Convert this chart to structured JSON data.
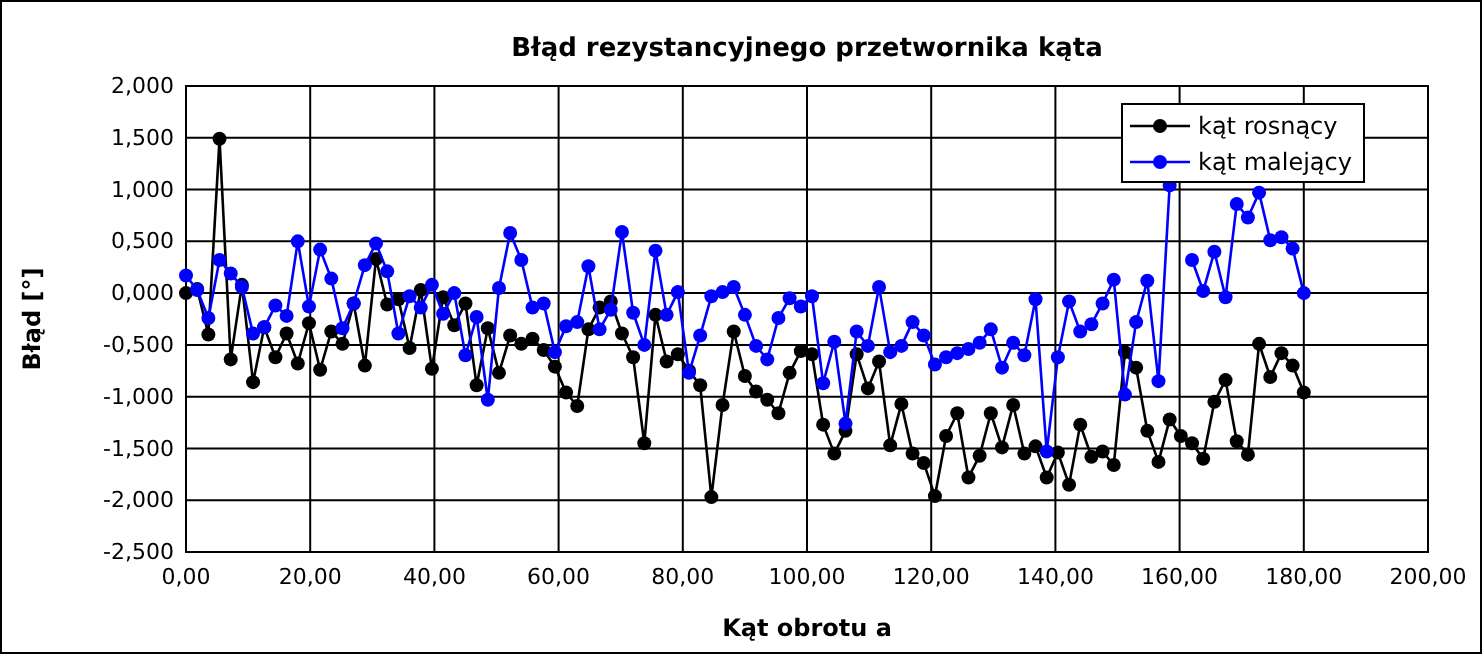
{
  "chart_data": {
    "type": "line",
    "title": "Błąd rezystancyjnego przetwornika kąta",
    "xlabel": "Kąt obrotu a",
    "ylabel": "Błąd [°]",
    "x": [
      0,
      1.8,
      3.6,
      5.4,
      7.2,
      9,
      10.8,
      12.6,
      14.4,
      16.2,
      18,
      19.8,
      21.6,
      23.4,
      25.2,
      27,
      28.8,
      30.6,
      32.4,
      34.2,
      36,
      37.8,
      39.6,
      41.4,
      43.2,
      45,
      46.8,
      48.6,
      50.4,
      52.2,
      54,
      55.8,
      57.6,
      59.4,
      61.2,
      63,
      64.8,
      66.6,
      68.4,
      70.2,
      72,
      73.8,
      75.6,
      77.4,
      79.2,
      81,
      82.8,
      84.6,
      86.4,
      88.2,
      90,
      91.8,
      93.6,
      95.4,
      97.2,
      99,
      100.8,
      102.6,
      104.4,
      106.2,
      108,
      109.8,
      111.6,
      113.4,
      115.2,
      117,
      118.8,
      120.6,
      122.4,
      124.2,
      126,
      127.8,
      129.6,
      131.4,
      133.2,
      135,
      136.8,
      138.6,
      140.4,
      142.2,
      144,
      145.8,
      147.6,
      149.4,
      151.2,
      153,
      154.8,
      156.6,
      158.4,
      160.2,
      162,
      163.8,
      165.6,
      167.4,
      169.2,
      171,
      172.8,
      174.6,
      176.4,
      178.2,
      180
    ],
    "series": [
      {
        "name": "kąt rosnący",
        "color": "#000000",
        "values": [
          0,
          0.04,
          -0.4,
          1.49,
          -0.64,
          0.08,
          -0.86,
          -0.33,
          -0.62,
          -0.39,
          -0.68,
          -0.29,
          -0.74,
          -0.37,
          -0.49,
          -0.1,
          -0.7,
          0.33,
          -0.11,
          -0.06,
          -0.53,
          0.03,
          -0.73,
          -0.04,
          -0.31,
          -0.1,
          -0.89,
          -0.34,
          -0.77,
          -0.41,
          -0.49,
          -0.44,
          -0.55,
          -0.71,
          -0.96,
          -1.09,
          -0.35,
          -0.14,
          -0.08,
          -0.39,
          -0.62,
          -1.45,
          -0.21,
          -0.66,
          -0.59,
          -0.75,
          -0.89,
          -1.97,
          -1.08,
          -0.37,
          -0.8,
          -0.95,
          -1.03,
          -1.16,
          -0.77,
          -0.56,
          -0.59,
          -1.27,
          -1.55,
          -1.33,
          -0.59,
          -0.92,
          -0.66,
          -1.47,
          -1.07,
          -1.55,
          -1.64,
          -1.96,
          -1.38,
          -1.16,
          -1.78,
          -1.57,
          -1.16,
          -1.49,
          -1.08,
          -1.55,
          -1.48,
          -1.78,
          -1.54,
          -1.85,
          -1.27,
          -1.58,
          -1.53,
          -1.66,
          -0.57,
          -0.72,
          -1.33,
          -1.63,
          -1.22,
          -1.38,
          -1.45,
          -1.6,
          -1.05,
          -0.84,
          -1.43,
          -1.56,
          -0.49,
          -0.81,
          -0.58,
          -0.7,
          -0.96
        ]
      },
      {
        "name": "kąt malejący",
        "color": "#0000ff",
        "values": [
          0.17,
          0.03,
          -0.24,
          0.32,
          0.19,
          0.06,
          -0.39,
          -0.33,
          -0.12,
          -0.22,
          0.5,
          -0.13,
          0.42,
          0.14,
          -0.34,
          -0.1,
          0.27,
          0.48,
          0.21,
          -0.39,
          -0.03,
          -0.14,
          0.08,
          -0.2,
          0.0,
          -0.6,
          -0.23,
          -1.03,
          0.05,
          0.58,
          0.32,
          -0.14,
          -0.1,
          -0.57,
          -0.32,
          -0.28,
          0.26,
          -0.35,
          -0.16,
          0.59,
          -0.19,
          -0.5,
          0.41,
          -0.21,
          0.01,
          -0.77,
          -0.41,
          -0.03,
          0.01,
          0.06,
          -0.21,
          -0.51,
          -0.64,
          -0.24,
          -0.05,
          -0.13,
          -0.03,
          -0.87,
          -0.47,
          -1.26,
          -0.37,
          -0.51,
          0.06,
          -0.57,
          -0.51,
          -0.28,
          -0.41,
          -0.69,
          -0.62,
          -0.58,
          -0.54,
          -0.48,
          -0.35,
          -0.72,
          -0.48,
          -0.6,
          -0.06,
          -1.53,
          -0.62,
          -0.08,
          -0.37,
          -0.3,
          -0.1,
          0.13,
          -0.98,
          -0.28,
          0.12,
          -0.85,
          1.04,
          null,
          0.32,
          0.02,
          0.4,
          -0.04,
          0.86,
          0.73,
          0.97,
          0.51,
          0.54,
          0.43,
          0.0
        ]
      }
    ],
    "xlim": [
      0,
      200
    ],
    "xticks": [
      {
        "value": 0,
        "label": "0,00"
      },
      {
        "value": 20,
        "label": "20,00"
      },
      {
        "value": 40,
        "label": "40,00"
      },
      {
        "value": 60,
        "label": "60,00"
      },
      {
        "value": 80,
        "label": "80,00"
      },
      {
        "value": 100,
        "label": "100,00"
      },
      {
        "value": 120,
        "label": "120,00"
      },
      {
        "value": 140,
        "label": "140,00"
      },
      {
        "value": 160,
        "label": "160,00"
      },
      {
        "value": 180,
        "label": "180,00"
      },
      {
        "value": 200,
        "label": "200,00"
      }
    ],
    "ylim": [
      -2.5,
      2
    ],
    "yticks": [
      {
        "value": -2.5,
        "label": "-2,500"
      },
      {
        "value": -2,
        "label": "-2,000"
      },
      {
        "value": -1.5,
        "label": "-1,500"
      },
      {
        "value": -1,
        "label": "-1,000"
      },
      {
        "value": -0.5,
        "label": "-0,500"
      },
      {
        "value": 0,
        "label": "0,000"
      },
      {
        "value": 0.5,
        "label": "0,500"
      },
      {
        "value": 1,
        "label": "1,000"
      },
      {
        "value": 1.5,
        "label": "1,500"
      },
      {
        "value": 2,
        "label": "2,000"
      }
    ],
    "grid": true,
    "legend": "top right",
    "marker": "circle",
    "line_style": "solid"
  }
}
